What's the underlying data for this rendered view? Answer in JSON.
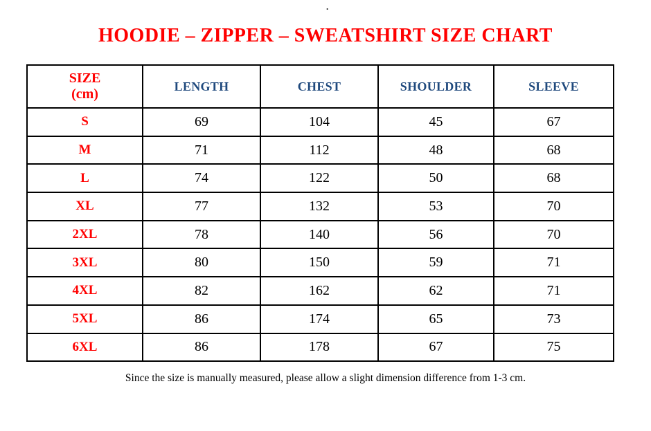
{
  "page": {
    "top_dot": ".",
    "title": "HOODIE – ZIPPER – SWEATSHIRT SIZE CHART",
    "footer_note": "Since the size is manually measured, please allow a slight dimension difference from 1-3 cm."
  },
  "colors": {
    "title_red": "#ff0000",
    "header_blue": "#1f497d",
    "body_text": "#000000",
    "border": "#000000",
    "background": "#ffffff"
  },
  "table": {
    "header": {
      "size_line1": "SIZE",
      "size_line2": "(cm)",
      "cols": [
        "LENGTH",
        "CHEST",
        "SHOULDER",
        "SLEEVE"
      ]
    },
    "rows": [
      {
        "size": "S",
        "values": [
          "69",
          "104",
          "45",
          "67"
        ]
      },
      {
        "size": "M",
        "values": [
          "71",
          "112",
          "48",
          "68"
        ]
      },
      {
        "size": "L",
        "values": [
          "74",
          "122",
          "50",
          "68"
        ]
      },
      {
        "size": "XL",
        "values": [
          "77",
          "132",
          "53",
          "70"
        ]
      },
      {
        "size": "2XL",
        "values": [
          "78",
          "140",
          "56",
          "70"
        ]
      },
      {
        "size": "3XL",
        "values": [
          "80",
          "150",
          "59",
          "71"
        ]
      },
      {
        "size": "4XL",
        "values": [
          "82",
          "162",
          "62",
          "71"
        ]
      },
      {
        "size": "5XL",
        "values": [
          "86",
          "174",
          "65",
          "73"
        ]
      },
      {
        "size": "6XL",
        "values": [
          "86",
          "178",
          "67",
          "75"
        ]
      }
    ]
  },
  "chart_data": {
    "type": "table",
    "title": "HOODIE – ZIPPER – SWEATSHIRT SIZE CHART",
    "unit": "cm",
    "columns": [
      "SIZE (cm)",
      "LENGTH",
      "CHEST",
      "SHOULDER",
      "SLEEVE"
    ],
    "rows": [
      [
        "S",
        69,
        104,
        45,
        67
      ],
      [
        "M",
        71,
        112,
        48,
        68
      ],
      [
        "L",
        74,
        122,
        50,
        68
      ],
      [
        "XL",
        77,
        132,
        53,
        70
      ],
      [
        "2XL",
        78,
        140,
        56,
        70
      ],
      [
        "3XL",
        80,
        150,
        59,
        71
      ],
      [
        "4XL",
        82,
        162,
        62,
        71
      ],
      [
        "5XL",
        86,
        174,
        65,
        73
      ],
      [
        "6XL",
        86,
        178,
        67,
        75
      ]
    ],
    "footnote": "Since the size is manually measured, please allow a slight dimension difference from 1-3 cm."
  }
}
